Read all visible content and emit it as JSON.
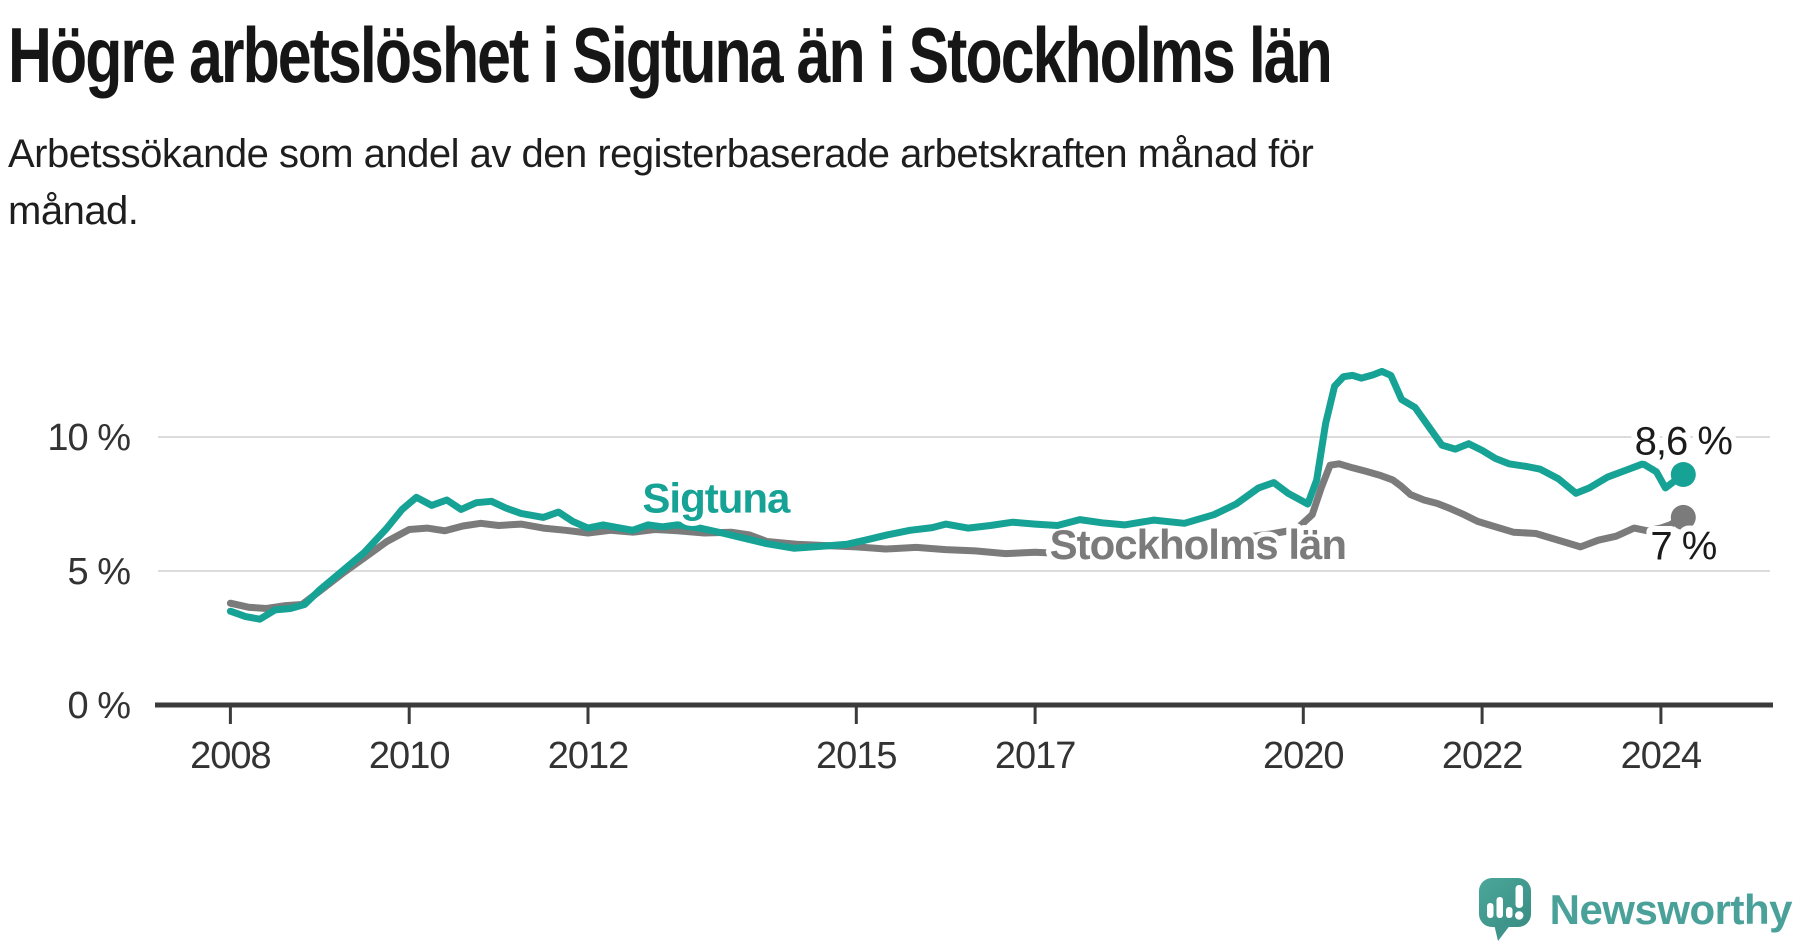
{
  "page": {
    "title": "Högre arbetslöshet i Sigtuna än i Stockholms län",
    "subtitle": "Arbetssökande som andel av den registerbaserade arbetskraften månad för månad."
  },
  "footer": {
    "brand": "Newsworthy",
    "brand_color": "#4aa19a",
    "logo_icon": "newsworthy-speech-bubble-chart-icon",
    "logo_color": "#3e968c"
  },
  "chart_data": {
    "type": "line",
    "title": "Högre arbetslöshet i Sigtuna än i Stockholms län",
    "subtitle": "Arbetssökande som andel av den registerbaserade arbetskraften månad för månad.",
    "unit": "%",
    "grid": true,
    "legend_position": "inline-labels",
    "x_axis": {
      "range": [
        2007.19,
        2025.22
      ],
      "ticks": [
        2008,
        2010,
        2012,
        2015,
        2017,
        2020,
        2022,
        2024
      ],
      "tick_labels": [
        "2008",
        "2010",
        "2012",
        "2015",
        "2017",
        "2020",
        "2022",
        "2024"
      ]
    },
    "y_axis": {
      "range": [
        0,
        14.74
      ],
      "ticks": [
        0,
        5,
        10
      ],
      "tick_labels": [
        "0 %",
        "5 %",
        "10 %"
      ],
      "gridlines": [
        5,
        10
      ]
    },
    "series": [
      {
        "name": "Stockholms län",
        "color": "#7b7b7b",
        "end_label": "7 %",
        "end_label_position": "below",
        "label_anchor": {
          "x": 2018.82,
          "y": 6.0
        },
        "points": [
          [
            2008.0,
            3.8
          ],
          [
            2008.2,
            3.65
          ],
          [
            2008.4,
            3.6
          ],
          [
            2008.6,
            3.7
          ],
          [
            2008.8,
            3.75
          ],
          [
            2009.0,
            4.25
          ],
          [
            2009.25,
            4.9
          ],
          [
            2009.5,
            5.5
          ],
          [
            2009.75,
            6.1
          ],
          [
            2010.0,
            6.55
          ],
          [
            2010.2,
            6.6
          ],
          [
            2010.4,
            6.5
          ],
          [
            2010.6,
            6.68
          ],
          [
            2010.8,
            6.78
          ],
          [
            2011.0,
            6.7
          ],
          [
            2011.25,
            6.75
          ],
          [
            2011.5,
            6.6
          ],
          [
            2011.75,
            6.52
          ],
          [
            2012.0,
            6.42
          ],
          [
            2012.25,
            6.52
          ],
          [
            2012.5,
            6.45
          ],
          [
            2012.75,
            6.55
          ],
          [
            2013.0,
            6.5
          ],
          [
            2013.3,
            6.42
          ],
          [
            2013.6,
            6.45
          ],
          [
            2013.8,
            6.35
          ],
          [
            2014.0,
            6.1
          ],
          [
            2014.33,
            6.0
          ],
          [
            2014.67,
            5.95
          ],
          [
            2015.0,
            5.9
          ],
          [
            2015.33,
            5.82
          ],
          [
            2015.67,
            5.88
          ],
          [
            2016.0,
            5.8
          ],
          [
            2016.33,
            5.75
          ],
          [
            2016.67,
            5.65
          ],
          [
            2017.0,
            5.7
          ],
          [
            2017.33,
            5.65
          ],
          [
            2017.67,
            5.72
          ],
          [
            2018.0,
            5.8
          ],
          [
            2018.33,
            5.88
          ],
          [
            2018.67,
            5.98
          ],
          [
            2019.0,
            6.1
          ],
          [
            2019.33,
            6.25
          ],
          [
            2019.67,
            6.4
          ],
          [
            2019.92,
            6.55
          ],
          [
            2020.1,
            7.1
          ],
          [
            2020.2,
            8.1
          ],
          [
            2020.3,
            8.95
          ],
          [
            2020.4,
            9.0
          ],
          [
            2020.55,
            8.85
          ],
          [
            2020.7,
            8.72
          ],
          [
            2020.85,
            8.58
          ],
          [
            2021.0,
            8.4
          ],
          [
            2021.1,
            8.15
          ],
          [
            2021.2,
            7.85
          ],
          [
            2021.35,
            7.65
          ],
          [
            2021.5,
            7.52
          ],
          [
            2021.65,
            7.32
          ],
          [
            2021.8,
            7.1
          ],
          [
            2021.95,
            6.85
          ],
          [
            2022.1,
            6.7
          ],
          [
            2022.35,
            6.45
          ],
          [
            2022.6,
            6.4
          ],
          [
            2022.9,
            6.1
          ],
          [
            2023.1,
            5.9
          ],
          [
            2023.3,
            6.15
          ],
          [
            2023.5,
            6.3
          ],
          [
            2023.7,
            6.6
          ],
          [
            2023.85,
            6.5
          ],
          [
            2024.0,
            6.6
          ],
          [
            2024.1,
            6.72
          ],
          [
            2024.25,
            7.0
          ]
        ]
      },
      {
        "name": "Sigtuna",
        "color": "#16a295",
        "end_label": "8,6 %",
        "end_label_position": "above",
        "label_anchor": {
          "x": 2013.43,
          "y": 7.75
        },
        "points": [
          [
            2008.0,
            3.5
          ],
          [
            2008.17,
            3.3
          ],
          [
            2008.33,
            3.2
          ],
          [
            2008.5,
            3.55
          ],
          [
            2008.67,
            3.6
          ],
          [
            2008.83,
            3.75
          ],
          [
            2009.0,
            4.3
          ],
          [
            2009.25,
            5.0
          ],
          [
            2009.5,
            5.7
          ],
          [
            2009.75,
            6.6
          ],
          [
            2009.92,
            7.3
          ],
          [
            2010.08,
            7.75
          ],
          [
            2010.25,
            7.45
          ],
          [
            2010.42,
            7.65
          ],
          [
            2010.58,
            7.3
          ],
          [
            2010.75,
            7.55
          ],
          [
            2010.92,
            7.6
          ],
          [
            2011.08,
            7.35
          ],
          [
            2011.25,
            7.15
          ],
          [
            2011.5,
            7.0
          ],
          [
            2011.67,
            7.2
          ],
          [
            2011.83,
            6.85
          ],
          [
            2012.0,
            6.6
          ],
          [
            2012.17,
            6.72
          ],
          [
            2012.33,
            6.62
          ],
          [
            2012.5,
            6.52
          ],
          [
            2012.67,
            6.72
          ],
          [
            2012.83,
            6.65
          ],
          [
            2013.0,
            6.72
          ],
          [
            2013.25,
            6.6
          ],
          [
            2013.5,
            6.42
          ],
          [
            2013.75,
            6.22
          ],
          [
            2014.0,
            6.02
          ],
          [
            2014.3,
            5.85
          ],
          [
            2014.6,
            5.92
          ],
          [
            2014.9,
            6.0
          ],
          [
            2015.1,
            6.15
          ],
          [
            2015.35,
            6.35
          ],
          [
            2015.6,
            6.52
          ],
          [
            2015.85,
            6.62
          ],
          [
            2016.0,
            6.75
          ],
          [
            2016.25,
            6.6
          ],
          [
            2016.5,
            6.7
          ],
          [
            2016.75,
            6.82
          ],
          [
            2017.0,
            6.75
          ],
          [
            2017.25,
            6.7
          ],
          [
            2017.5,
            6.92
          ],
          [
            2017.75,
            6.8
          ],
          [
            2018.0,
            6.72
          ],
          [
            2018.33,
            6.9
          ],
          [
            2018.67,
            6.78
          ],
          [
            2019.0,
            7.1
          ],
          [
            2019.25,
            7.5
          ],
          [
            2019.5,
            8.1
          ],
          [
            2019.67,
            8.3
          ],
          [
            2019.83,
            7.9
          ],
          [
            2020.05,
            7.5
          ],
          [
            2020.15,
            8.4
          ],
          [
            2020.25,
            10.5
          ],
          [
            2020.35,
            11.9
          ],
          [
            2020.45,
            12.25
          ],
          [
            2020.55,
            12.3
          ],
          [
            2020.65,
            12.2
          ],
          [
            2020.78,
            12.32
          ],
          [
            2020.88,
            12.45
          ],
          [
            2020.98,
            12.3
          ],
          [
            2021.02,
            12.0
          ],
          [
            2021.1,
            11.4
          ],
          [
            2021.25,
            11.1
          ],
          [
            2021.4,
            10.4
          ],
          [
            2021.55,
            9.7
          ],
          [
            2021.7,
            9.55
          ],
          [
            2021.85,
            9.75
          ],
          [
            2022.0,
            9.5
          ],
          [
            2022.15,
            9.2
          ],
          [
            2022.3,
            9.0
          ],
          [
            2022.5,
            8.9
          ],
          [
            2022.65,
            8.8
          ],
          [
            2022.85,
            8.45
          ],
          [
            2023.05,
            7.9
          ],
          [
            2023.2,
            8.1
          ],
          [
            2023.4,
            8.5
          ],
          [
            2023.6,
            8.75
          ],
          [
            2023.8,
            9.0
          ],
          [
            2023.95,
            8.7
          ],
          [
            2024.05,
            8.1
          ],
          [
            2024.25,
            8.6
          ]
        ]
      }
    ]
  }
}
